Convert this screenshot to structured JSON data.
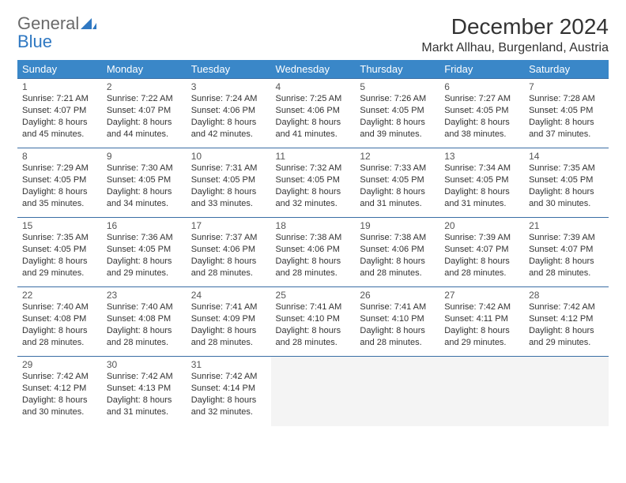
{
  "logo": {
    "general": "General",
    "blue": "Blue"
  },
  "title": "December 2024",
  "location": "Markt Allhau, Burgenland, Austria",
  "colors": {
    "header_bg": "#3a87c8",
    "header_text": "#ffffff",
    "border": "#3a6ea5",
    "logo_blue": "#2f78c2",
    "logo_gray": "#6a6a6a",
    "empty_bg": "#f4f4f4"
  },
  "day_headers": [
    "Sunday",
    "Monday",
    "Tuesday",
    "Wednesday",
    "Thursday",
    "Friday",
    "Saturday"
  ],
  "weeks": [
    [
      {
        "n": "1",
        "sr": "Sunrise: 7:21 AM",
        "ss": "Sunset: 4:07 PM",
        "dl1": "Daylight: 8 hours",
        "dl2": "and 45 minutes."
      },
      {
        "n": "2",
        "sr": "Sunrise: 7:22 AM",
        "ss": "Sunset: 4:07 PM",
        "dl1": "Daylight: 8 hours",
        "dl2": "and 44 minutes."
      },
      {
        "n": "3",
        "sr": "Sunrise: 7:24 AM",
        "ss": "Sunset: 4:06 PM",
        "dl1": "Daylight: 8 hours",
        "dl2": "and 42 minutes."
      },
      {
        "n": "4",
        "sr": "Sunrise: 7:25 AM",
        "ss": "Sunset: 4:06 PM",
        "dl1": "Daylight: 8 hours",
        "dl2": "and 41 minutes."
      },
      {
        "n": "5",
        "sr": "Sunrise: 7:26 AM",
        "ss": "Sunset: 4:05 PM",
        "dl1": "Daylight: 8 hours",
        "dl2": "and 39 minutes."
      },
      {
        "n": "6",
        "sr": "Sunrise: 7:27 AM",
        "ss": "Sunset: 4:05 PM",
        "dl1": "Daylight: 8 hours",
        "dl2": "and 38 minutes."
      },
      {
        "n": "7",
        "sr": "Sunrise: 7:28 AM",
        "ss": "Sunset: 4:05 PM",
        "dl1": "Daylight: 8 hours",
        "dl2": "and 37 minutes."
      }
    ],
    [
      {
        "n": "8",
        "sr": "Sunrise: 7:29 AM",
        "ss": "Sunset: 4:05 PM",
        "dl1": "Daylight: 8 hours",
        "dl2": "and 35 minutes."
      },
      {
        "n": "9",
        "sr": "Sunrise: 7:30 AM",
        "ss": "Sunset: 4:05 PM",
        "dl1": "Daylight: 8 hours",
        "dl2": "and 34 minutes."
      },
      {
        "n": "10",
        "sr": "Sunrise: 7:31 AM",
        "ss": "Sunset: 4:05 PM",
        "dl1": "Daylight: 8 hours",
        "dl2": "and 33 minutes."
      },
      {
        "n": "11",
        "sr": "Sunrise: 7:32 AM",
        "ss": "Sunset: 4:05 PM",
        "dl1": "Daylight: 8 hours",
        "dl2": "and 32 minutes."
      },
      {
        "n": "12",
        "sr": "Sunrise: 7:33 AM",
        "ss": "Sunset: 4:05 PM",
        "dl1": "Daylight: 8 hours",
        "dl2": "and 31 minutes."
      },
      {
        "n": "13",
        "sr": "Sunrise: 7:34 AM",
        "ss": "Sunset: 4:05 PM",
        "dl1": "Daylight: 8 hours",
        "dl2": "and 31 minutes."
      },
      {
        "n": "14",
        "sr": "Sunrise: 7:35 AM",
        "ss": "Sunset: 4:05 PM",
        "dl1": "Daylight: 8 hours",
        "dl2": "and 30 minutes."
      }
    ],
    [
      {
        "n": "15",
        "sr": "Sunrise: 7:35 AM",
        "ss": "Sunset: 4:05 PM",
        "dl1": "Daylight: 8 hours",
        "dl2": "and 29 minutes."
      },
      {
        "n": "16",
        "sr": "Sunrise: 7:36 AM",
        "ss": "Sunset: 4:05 PM",
        "dl1": "Daylight: 8 hours",
        "dl2": "and 29 minutes."
      },
      {
        "n": "17",
        "sr": "Sunrise: 7:37 AM",
        "ss": "Sunset: 4:06 PM",
        "dl1": "Daylight: 8 hours",
        "dl2": "and 28 minutes."
      },
      {
        "n": "18",
        "sr": "Sunrise: 7:38 AM",
        "ss": "Sunset: 4:06 PM",
        "dl1": "Daylight: 8 hours",
        "dl2": "and 28 minutes."
      },
      {
        "n": "19",
        "sr": "Sunrise: 7:38 AM",
        "ss": "Sunset: 4:06 PM",
        "dl1": "Daylight: 8 hours",
        "dl2": "and 28 minutes."
      },
      {
        "n": "20",
        "sr": "Sunrise: 7:39 AM",
        "ss": "Sunset: 4:07 PM",
        "dl1": "Daylight: 8 hours",
        "dl2": "and 28 minutes."
      },
      {
        "n": "21",
        "sr": "Sunrise: 7:39 AM",
        "ss": "Sunset: 4:07 PM",
        "dl1": "Daylight: 8 hours",
        "dl2": "and 28 minutes."
      }
    ],
    [
      {
        "n": "22",
        "sr": "Sunrise: 7:40 AM",
        "ss": "Sunset: 4:08 PM",
        "dl1": "Daylight: 8 hours",
        "dl2": "and 28 minutes."
      },
      {
        "n": "23",
        "sr": "Sunrise: 7:40 AM",
        "ss": "Sunset: 4:08 PM",
        "dl1": "Daylight: 8 hours",
        "dl2": "and 28 minutes."
      },
      {
        "n": "24",
        "sr": "Sunrise: 7:41 AM",
        "ss": "Sunset: 4:09 PM",
        "dl1": "Daylight: 8 hours",
        "dl2": "and 28 minutes."
      },
      {
        "n": "25",
        "sr": "Sunrise: 7:41 AM",
        "ss": "Sunset: 4:10 PM",
        "dl1": "Daylight: 8 hours",
        "dl2": "and 28 minutes."
      },
      {
        "n": "26",
        "sr": "Sunrise: 7:41 AM",
        "ss": "Sunset: 4:10 PM",
        "dl1": "Daylight: 8 hours",
        "dl2": "and 28 minutes."
      },
      {
        "n": "27",
        "sr": "Sunrise: 7:42 AM",
        "ss": "Sunset: 4:11 PM",
        "dl1": "Daylight: 8 hours",
        "dl2": "and 29 minutes."
      },
      {
        "n": "28",
        "sr": "Sunrise: 7:42 AM",
        "ss": "Sunset: 4:12 PM",
        "dl1": "Daylight: 8 hours",
        "dl2": "and 29 minutes."
      }
    ],
    [
      {
        "n": "29",
        "sr": "Sunrise: 7:42 AM",
        "ss": "Sunset: 4:12 PM",
        "dl1": "Daylight: 8 hours",
        "dl2": "and 30 minutes."
      },
      {
        "n": "30",
        "sr": "Sunrise: 7:42 AM",
        "ss": "Sunset: 4:13 PM",
        "dl1": "Daylight: 8 hours",
        "dl2": "and 31 minutes."
      },
      {
        "n": "31",
        "sr": "Sunrise: 7:42 AM",
        "ss": "Sunset: 4:14 PM",
        "dl1": "Daylight: 8 hours",
        "dl2": "and 32 minutes."
      },
      null,
      null,
      null,
      null
    ]
  ]
}
